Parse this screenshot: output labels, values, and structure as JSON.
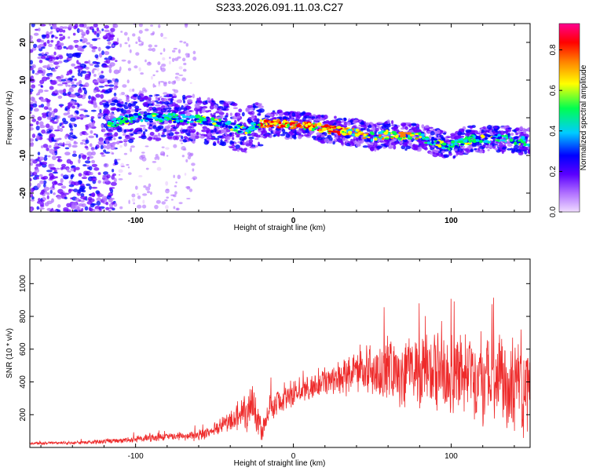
{
  "title": "S233.2026.091.11.03.C27",
  "chart_data": [
    {
      "type": "heatmap",
      "xlabel": "Height of straight line (km)",
      "ylabel": "Frequency (Hz)",
      "xlim": [
        -167,
        150
      ],
      "ylim": [
        -25,
        25
      ],
      "x_ticks": [
        -100,
        0,
        100
      ],
      "y_ticks": [
        -20,
        -10,
        0,
        10,
        20
      ],
      "colorbar": {
        "label": "Normalized spectral amplitude",
        "range": [
          0.0,
          0.93
        ],
        "ticks": [
          "0.0",
          "0.2",
          "0.4",
          "0.6",
          "0.8"
        ],
        "colors": [
          "#e8c8ff",
          "#b070ff",
          "#6a00ff",
          "#0000ff",
          "#00d0ff",
          "#00ff50",
          "#ffff00",
          "#ff7f00",
          "#ff0000",
          "#ff0080"
        ]
      },
      "ridge": {
        "x": [
          -117,
          -100,
          -80,
          -60,
          -40,
          -30,
          -22,
          -10,
          0,
          10,
          20,
          30,
          40,
          50,
          60,
          70,
          80,
          90,
          100,
          110,
          120,
          130,
          140,
          150
        ],
        "freq": [
          -1.5,
          0,
          0,
          -0.5,
          -2,
          -3.5,
          -1.5,
          -1.5,
          -2,
          -2,
          -3,
          -3.5,
          -4,
          -5,
          -4.5,
          -5,
          -5,
          -6.5,
          -7.5,
          -6,
          -5.5,
          -5.5,
          -6,
          -6.5
        ]
      }
    },
    {
      "type": "line",
      "xlabel": "Height of straight line (km)",
      "ylabel": "SNR (10 * v/v)",
      "xlim": [
        -167,
        150
      ],
      "ylim": [
        0,
        1150
      ],
      "x_ticks": [
        -100,
        0,
        100
      ],
      "y_ticks": [
        200,
        400,
        600,
        800,
        1000
      ],
      "color": "#ee2a2a",
      "envelope": {
        "x": [
          -167,
          -130,
          -100,
          -80,
          -60,
          -50,
          -40,
          -30,
          -25,
          -20,
          -15,
          -10,
          0,
          10,
          20,
          40,
          60,
          80,
          100,
          120,
          135,
          150
        ],
        "mean": [
          25,
          30,
          50,
          65,
          70,
          100,
          160,
          210,
          280,
          90,
          250,
          270,
          320,
          360,
          420,
          460,
          470,
          460,
          430,
          420,
          400,
          380
        ],
        "spread": [
          10,
          12,
          25,
          30,
          35,
          50,
          80,
          130,
          170,
          60,
          120,
          80,
          70,
          90,
          110,
          160,
          220,
          270,
          300,
          320,
          330,
          340
        ]
      }
    }
  ]
}
